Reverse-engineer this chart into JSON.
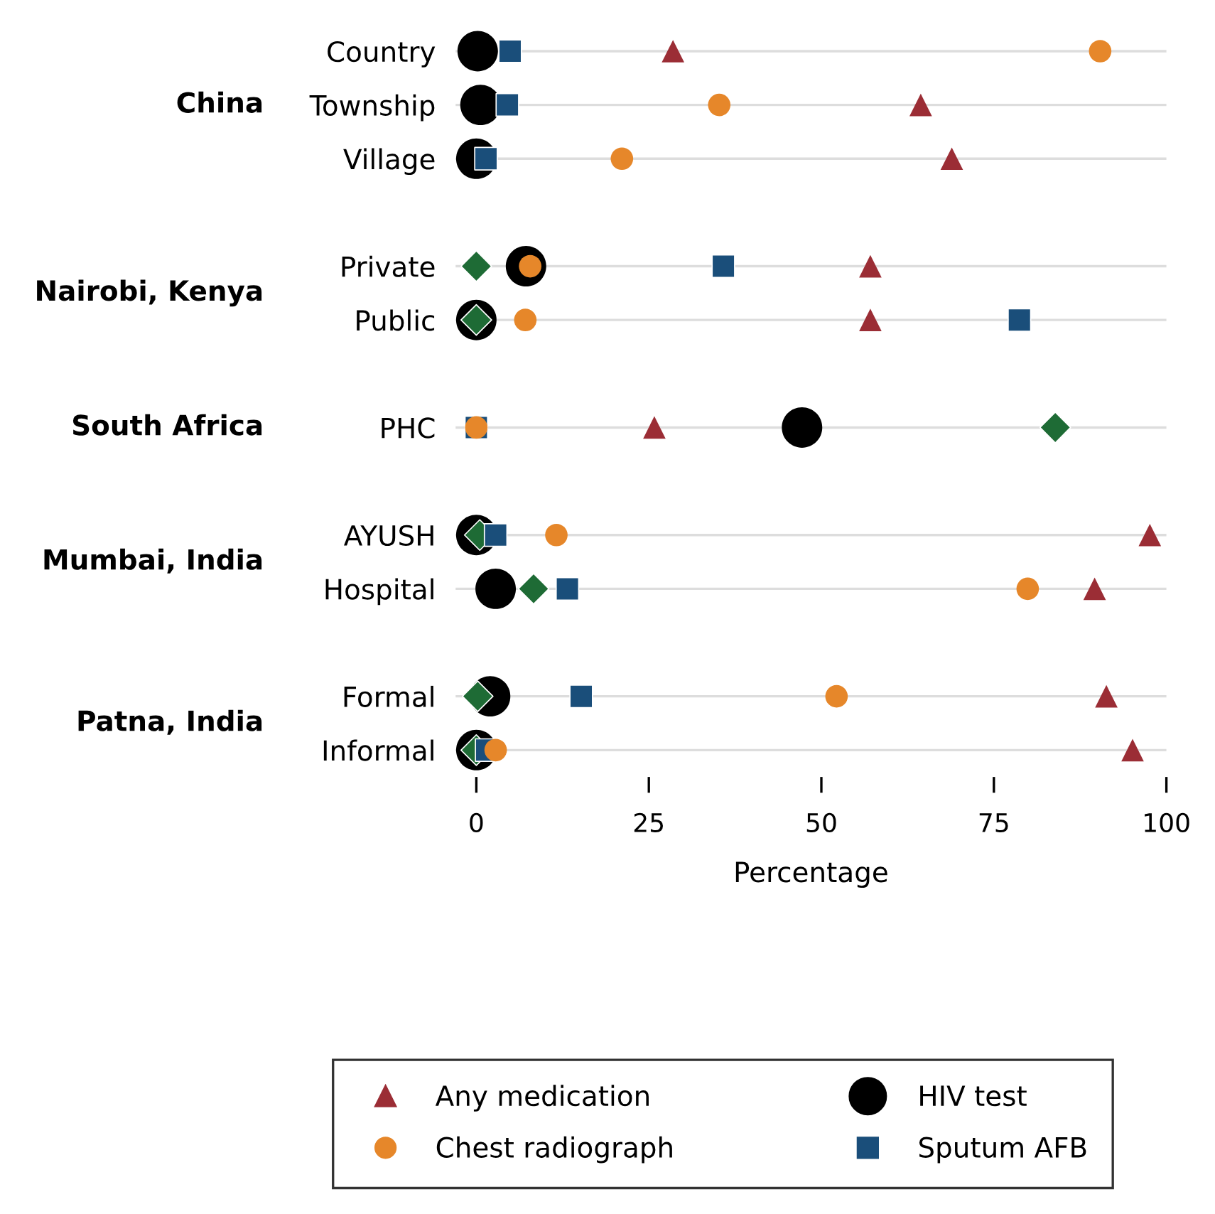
{
  "chart_data": {
    "type": "scatter",
    "xlabel": "Percentage",
    "categories": [
      "Country",
      "Township",
      "Village",
      null,
      "Private",
      "Public",
      null,
      "PHC",
      null,
      "AYUSH",
      "Hospital",
      null,
      "Formal",
      "Informal"
    ],
    "annotations": [
      "China",
      "Nairobi, Kenya",
      "South Africa",
      "Mumbai, India",
      "Patna, India"
    ],
    "orientation": "horizontal",
    "xlim": [
      -3,
      100
    ],
    "xticks": [
      0,
      25,
      50,
      75,
      100
    ],
    "grid": "y",
    "legend": "bottom",
    "series": [
      {
        "name": "Any medication",
        "color": "#9b2d35",
        "marker": "triangle",
        "values": [
          28.5,
          64.4,
          68.9,
          null,
          57.1,
          57.1,
          null,
          25.8,
          null,
          97.6,
          89.6,
          null,
          91.3,
          95.1
        ]
      },
      {
        "name": "Chest radiograph",
        "color": "#e6872a",
        "marker": "circle",
        "values": [
          90.4,
          35.2,
          21.1,
          null,
          7.8,
          7.1,
          null,
          0,
          null,
          11.6,
          79.9,
          null,
          52.2,
          2.8
        ]
      },
      {
        "name": "HIV test",
        "color": "#000000",
        "marker": "circle",
        "values": [
          0.2,
          0.6,
          0,
          null,
          7.2,
          0,
          null,
          47.2,
          null,
          0,
          2.8,
          null,
          2,
          0
        ]
      },
      {
        "name": "Sputum AFB",
        "color": "#1a4e7a",
        "marker": "square",
        "values": [
          4.9,
          4.5,
          1.4,
          null,
          35.8,
          78.7,
          null,
          0,
          null,
          2.8,
          13.2,
          null,
          15.2,
          1.5
        ]
      },
      {
        "color": "#1e6b35",
        "marker": "diamond",
        "values": [
          null,
          null,
          null,
          null,
          0,
          0,
          null,
          83.9,
          null,
          0.5,
          8.3,
          null,
          0.2,
          0
        ]
      }
    ]
  }
}
